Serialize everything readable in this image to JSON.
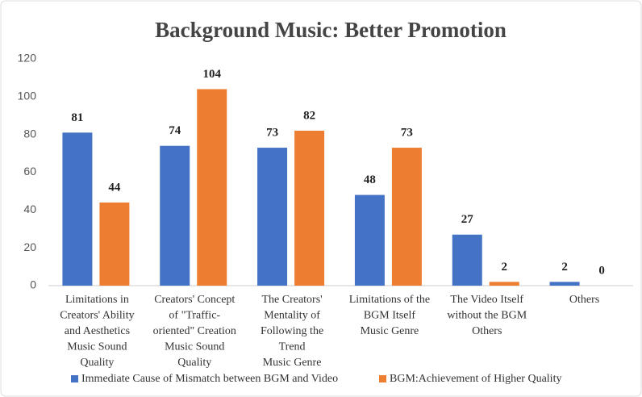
{
  "chart_data": {
    "type": "bar",
    "title": "Background Music: Better Promotion",
    "categories": [
      "Limitations in\nCreators' Ability\nand Aesthetics\nMusic Sound\nQuality",
      "Creators' Concept\nof \"Traffic-\noriented\" Creation\nMusic Sound\nQuality",
      "The Creators'\nMentality of\nFollowing the\nTrend\nMusic Genre",
      "Limitations of the\nBGM Itself\nMusic Genre",
      "The Video Itself\nwithout the BGM\nOthers",
      "Others"
    ],
    "series": [
      {
        "name": "Immediate Cause of Mismatch between BGM and Video",
        "color": "#4472c4",
        "values": [
          81,
          74,
          73,
          48,
          27,
          2
        ]
      },
      {
        "name": "BGM:Achievement of Higher Quality",
        "color": "#ed7d31",
        "values": [
          44,
          104,
          82,
          73,
          2,
          0
        ]
      }
    ],
    "ylim": [
      0,
      120
    ],
    "yticks": [
      0,
      20,
      40,
      60,
      80,
      100,
      120
    ],
    "grid": false,
    "legend": "bottom"
  }
}
